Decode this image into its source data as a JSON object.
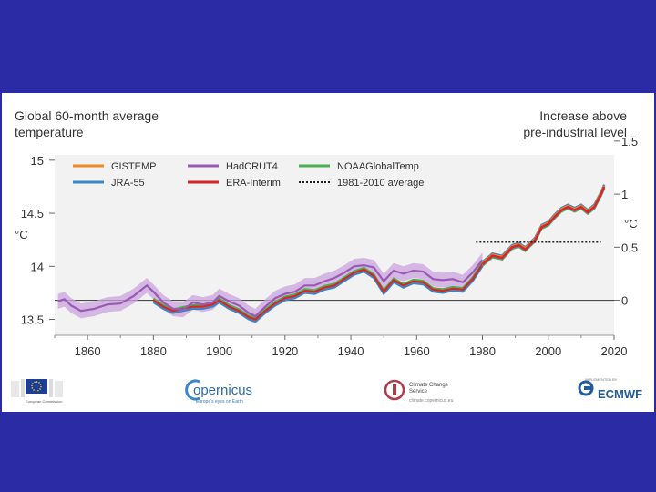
{
  "chart_data": {
    "type": "line",
    "title_left": [
      "Global 60-month average",
      "temperature"
    ],
    "title_right": [
      "Increase above",
      "pre-industrial level"
    ],
    "ylabel_left": "°C",
    "ylabel_right": "°C",
    "xlim": [
      1850,
      2020
    ],
    "ylim": [
      13.35,
      15.05
    ],
    "x_ticks": [
      1860,
      1880,
      1900,
      1920,
      1940,
      1960,
      1980,
      2000,
      2020
    ],
    "y_ticks_left": [
      13.5,
      14,
      14.5,
      15
    ],
    "y_ticks_right": [
      {
        "label": "0",
        "value": 13.68
      },
      {
        "label": "0.5",
        "value": 14.18
      },
      {
        "label": "1",
        "value": 14.68
      },
      {
        "label": "1.5",
        "value": 15.18
      }
    ],
    "zero_line": 13.68,
    "average_line": {
      "name": "1981-2010 average",
      "x": [
        1978,
        2016
      ],
      "value": 14.23
    },
    "legend": [
      {
        "name": "GISTEMP",
        "color": "#f08a24"
      },
      {
        "name": "HadCRUT4",
        "color": "#9b59b6"
      },
      {
        "name": "NOAAGlobalTemp",
        "color": "#4caf50"
      },
      {
        "name": "JRA-55",
        "color": "#3b86c7"
      },
      {
        "name": "ERA-Interim",
        "color": "#d62728"
      },
      {
        "name": "1981-2010 average",
        "color": "#222222"
      }
    ],
    "hadcrut4": {
      "name": "HadCRUT4",
      "color": "#9b59b6",
      "band": 0.07,
      "x": [
        1851,
        1853,
        1855,
        1858,
        1862,
        1866,
        1870,
        1874,
        1878,
        1880,
        1883,
        1886,
        1889,
        1892,
        1895,
        1898,
        1900,
        1903,
        1906,
        1909,
        1911,
        1914,
        1917,
        1920,
        1923,
        1926,
        1929,
        1932,
        1935,
        1938,
        1941,
        1944,
        1947,
        1950,
        1953,
        1956,
        1959,
        1962,
        1965,
        1968,
        1971,
        1974,
        1977,
        1980
      ],
      "y": [
        13.67,
        13.69,
        13.63,
        13.58,
        13.6,
        13.64,
        13.65,
        13.72,
        13.82,
        13.76,
        13.66,
        13.6,
        13.59,
        13.66,
        13.64,
        13.66,
        13.72,
        13.67,
        13.63,
        13.56,
        13.53,
        13.62,
        13.7,
        13.74,
        13.76,
        13.82,
        13.82,
        13.86,
        13.89,
        13.94,
        14.0,
        14.01,
        13.99,
        13.86,
        13.96,
        13.93,
        13.96,
        13.95,
        13.88,
        13.87,
        13.88,
        13.85,
        13.94,
        14.06
      ]
    },
    "reanalysis_series": [
      {
        "name": "GISTEMP",
        "color": "#f08a24"
      },
      {
        "name": "NOAAGlobalTemp",
        "color": "#4caf50"
      },
      {
        "name": "JRA-55",
        "color": "#3b86c7"
      },
      {
        "name": "ERA-Interim",
        "color": "#d62728"
      }
    ],
    "obs_x": [
      1880,
      1883,
      1886,
      1889,
      1892,
      1895,
      1898,
      1900,
      1903,
      1906,
      1909,
      1911,
      1914,
      1917,
      1920,
      1923,
      1926,
      1929,
      1932,
      1935,
      1938,
      1941,
      1944,
      1947,
      1950,
      1953,
      1956,
      1959,
      1962,
      1965,
      1968,
      1971,
      1974,
      1977,
      1980
    ],
    "obs_y": [
      13.68,
      13.62,
      13.58,
      13.6,
      13.62,
      13.62,
      13.64,
      13.68,
      13.62,
      13.58,
      13.52,
      13.5,
      13.58,
      13.65,
      13.7,
      13.72,
      13.77,
      13.76,
      13.8,
      13.82,
      13.88,
      13.94,
      13.97,
      13.91,
      13.76,
      13.87,
      13.82,
      13.86,
      13.85,
      13.78,
      13.77,
      13.79,
      13.78,
      13.88,
      14.02
    ],
    "modern_x": [
      1980,
      1983,
      1986,
      1989,
      1991,
      1993,
      1996,
      1998,
      2000,
      2002,
      2004,
      2006,
      2008,
      2010,
      2012,
      2014,
      2016,
      2017
    ],
    "modern_y": [
      14.02,
      14.1,
      14.08,
      14.18,
      14.2,
      14.16,
      14.25,
      14.37,
      14.4,
      14.47,
      14.53,
      14.56,
      14.53,
      14.56,
      14.51,
      14.56,
      14.68,
      14.75
    ]
  },
  "logos": {
    "eu_label": "European Commission",
    "copernicus_name": "opernicus",
    "copernicus_sub": "Europe's eyes on Earth",
    "c3s_name": "Climate Change Service",
    "c3s_sub": "climate.copernicus.eu",
    "ecmwf_name": "ECMWF",
    "ecmwf_sub": "IMPLEMENTED BY"
  }
}
